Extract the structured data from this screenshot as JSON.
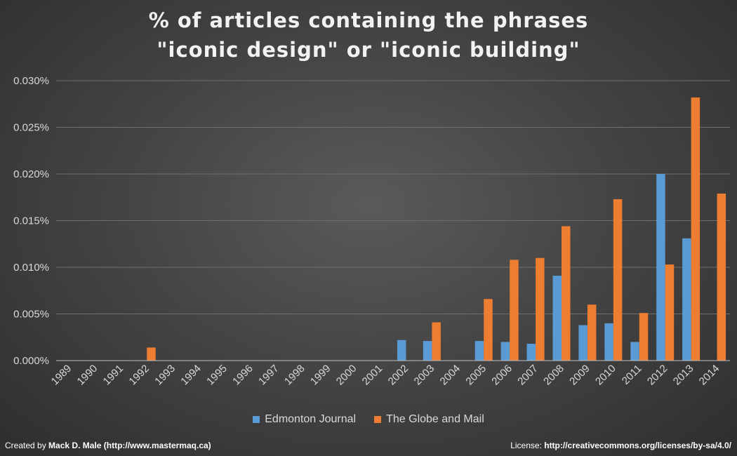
{
  "chart_data": {
    "type": "bar",
    "title_line1": "% of articles containing the phrases",
    "title_line2": "\"iconic design\" or \"iconic building\"",
    "categories": [
      "1989",
      "1990",
      "1991",
      "1992",
      "1993",
      "1994",
      "1995",
      "1996",
      "1997",
      "1998",
      "1999",
      "2000",
      "2001",
      "2002",
      "2003",
      "2004",
      "2005",
      "2006",
      "2007",
      "2008",
      "2009",
      "2010",
      "2011",
      "2012",
      "2013",
      "2014"
    ],
    "series": [
      {
        "name": "Edmonton Journal",
        "color": "#5b9bd5",
        "values": [
          0,
          0,
          0,
          0,
          0,
          0,
          0,
          0,
          0,
          0,
          0,
          0,
          0,
          0.0022,
          0.0021,
          0,
          0.0021,
          0.002,
          0.0018,
          0.0091,
          0.0038,
          0.004,
          0.002,
          0.02,
          0.0131,
          0
        ]
      },
      {
        "name": "The Globe and Mail",
        "color": "#ed7d31",
        "values": [
          0,
          0,
          0,
          0.0014,
          0,
          0,
          0,
          0,
          0,
          0,
          0,
          0,
          0,
          0,
          0.0041,
          0,
          0.0066,
          0.0108,
          0.011,
          0.0144,
          0.006,
          0.0173,
          0.0051,
          0.0103,
          0.0282,
          0.0179
        ]
      }
    ],
    "yticks": [
      "0.000%",
      "0.005%",
      "0.010%",
      "0.015%",
      "0.020%",
      "0.025%",
      "0.030%"
    ],
    "ylim": [
      0,
      0.03
    ],
    "grid": true,
    "legend_position": "bottom"
  },
  "footer": {
    "left_prefix": "Created by ",
    "left_bold": "Mack D. Male (http://www.mastermaq.ca)",
    "right_prefix": "License: ",
    "right_bold": "http://creativecommons.org/licenses/by-sa/4.0/"
  }
}
